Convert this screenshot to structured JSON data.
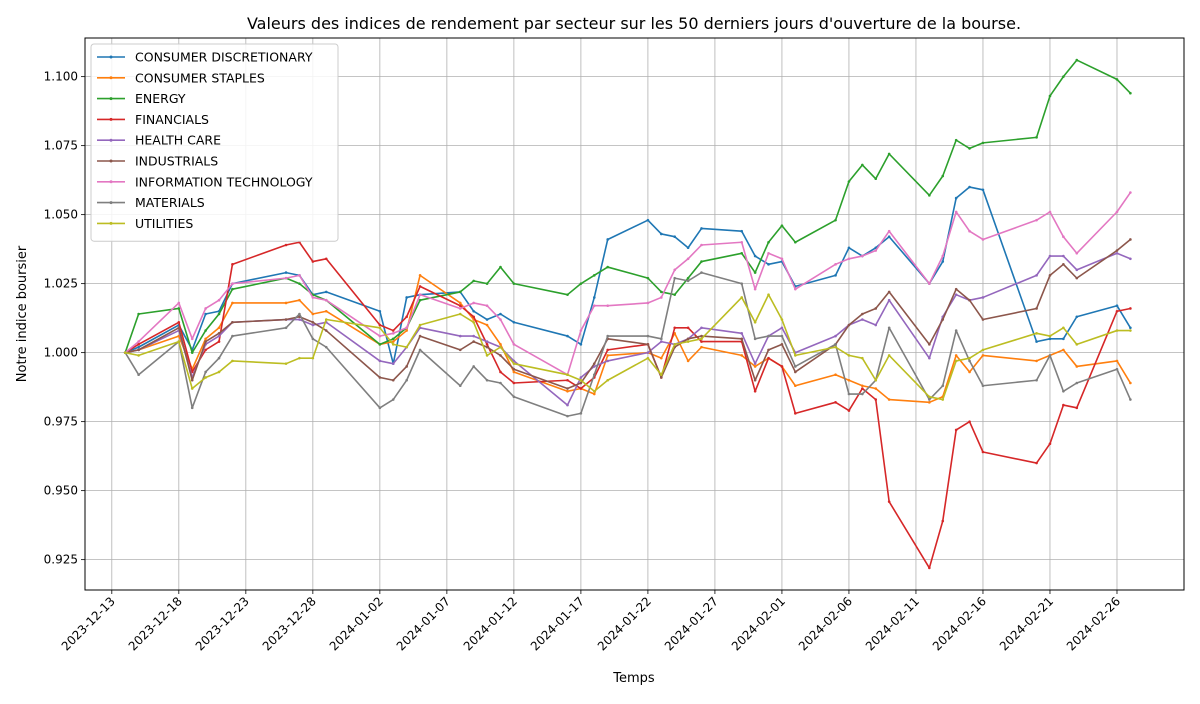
{
  "chart_data": {
    "type": "line",
    "title": "Valeurs des indices de rendement par secteur sur les 50 derniers jours d'ouverture de la bourse.",
    "xlabel": "Temps",
    "ylabel": "Notre indice boursier",
    "xlim": [
      "2023-12-11",
      "2024-03-02"
    ],
    "ylim": [
      0.914,
      1.114
    ],
    "x_ticks": [
      "2023-12-13",
      "2023-12-18",
      "2023-12-23",
      "2023-12-28",
      "2024-01-02",
      "2024-01-07",
      "2024-01-12",
      "2024-01-17",
      "2024-01-22",
      "2024-01-27",
      "2024-02-01",
      "2024-02-06",
      "2024-02-11",
      "2024-02-16",
      "2024-02-21",
      "2024-02-26"
    ],
    "y_ticks": [
      "0.925",
      "0.950",
      "0.975",
      "1.000",
      "1.025",
      "1.050",
      "1.075",
      "1.100"
    ],
    "grid": true,
    "legend_position": "top-left",
    "dates": [
      "2023-12-14",
      "2023-12-15",
      "2023-12-18",
      "2023-12-19",
      "2023-12-20",
      "2023-12-21",
      "2023-12-22",
      "2023-12-26",
      "2023-12-27",
      "2023-12-28",
      "2023-12-29",
      "2024-01-02",
      "2024-01-03",
      "2024-01-04",
      "2024-01-05",
      "2024-01-08",
      "2024-01-09",
      "2024-01-10",
      "2024-01-11",
      "2024-01-12",
      "2024-01-16",
      "2024-01-17",
      "2024-01-18",
      "2024-01-19",
      "2024-01-22",
      "2024-01-23",
      "2024-01-24",
      "2024-01-25",
      "2024-01-26",
      "2024-01-29",
      "2024-01-30",
      "2024-01-31",
      "2024-02-01",
      "2024-02-02",
      "2024-02-05",
      "2024-02-06",
      "2024-02-07",
      "2024-02-08",
      "2024-02-09",
      "2024-02-12",
      "2024-02-13",
      "2024-02-14",
      "2024-02-15",
      "2024-02-16",
      "2024-02-20",
      "2024-02-21",
      "2024-02-22",
      "2024-02-23",
      "2024-02-26",
      "2024-02-27"
    ],
    "series": [
      {
        "name": "CONSUMER DISCRETIONARY",
        "color": "#1f77b4",
        "values": [
          1.0,
          1.002,
          1.01,
          1.001,
          1.014,
          1.015,
          1.025,
          1.029,
          1.028,
          1.021,
          1.022,
          1.015,
          0.996,
          1.02,
          1.021,
          1.022,
          1.015,
          1.012,
          1.014,
          1.011,
          1.006,
          1.003,
          1.02,
          1.041,
          1.048,
          1.043,
          1.042,
          1.038,
          1.045,
          1.044,
          1.035,
          1.032,
          1.033,
          1.024,
          1.028,
          1.038,
          1.035,
          1.038,
          1.042,
          1.025,
          1.033,
          1.056,
          1.06,
          1.059,
          1.004,
          1.005,
          1.005,
          1.013,
          1.017,
          1.009
        ]
      },
      {
        "name": "CONSUMER STAPLES",
        "color": "#ff7f0e",
        "values": [
          1.0,
          1.001,
          1.006,
          0.994,
          1.005,
          1.009,
          1.018,
          1.018,
          1.019,
          1.014,
          1.015,
          1.003,
          1.004,
          1.008,
          1.028,
          1.018,
          1.012,
          1.01,
          1.003,
          0.993,
          0.986,
          0.987,
          0.985,
          0.999,
          1.0,
          0.998,
          1.007,
          0.997,
          1.002,
          0.999,
          0.995,
          0.998,
          0.995,
          0.988,
          0.992,
          0.99,
          0.988,
          0.987,
          0.983,
          0.982,
          0.984,
          0.999,
          0.993,
          0.999,
          0.997,
          0.999,
          1.001,
          0.995,
          0.997,
          0.989
        ]
      },
      {
        "name": "ENERGY",
        "color": "#2ca02c",
        "values": [
          1.0,
          1.014,
          1.016,
          1.0,
          1.008,
          1.014,
          1.023,
          1.027,
          1.025,
          1.021,
          1.019,
          1.003,
          1.005,
          1.009,
          1.019,
          1.022,
          1.026,
          1.025,
          1.031,
          1.025,
          1.021,
          1.025,
          1.028,
          1.031,
          1.027,
          1.022,
          1.021,
          1.027,
          1.033,
          1.036,
          1.029,
          1.04,
          1.046,
          1.04,
          1.048,
          1.062,
          1.068,
          1.063,
          1.072,
          1.057,
          1.064,
          1.077,
          1.074,
          1.076,
          1.078,
          1.093,
          1.1,
          1.106,
          1.099,
          1.094
        ]
      },
      {
        "name": "FINANCIALS",
        "color": "#d62728",
        "values": [
          1.0,
          1.003,
          1.011,
          0.993,
          1.001,
          1.004,
          1.032,
          1.039,
          1.04,
          1.033,
          1.034,
          1.01,
          1.008,
          1.013,
          1.024,
          1.017,
          1.013,
          1.003,
          0.993,
          0.989,
          0.99,
          0.987,
          0.991,
          1.001,
          1.003,
          0.991,
          1.009,
          1.009,
          1.004,
          1.004,
          0.986,
          0.998,
          0.995,
          0.978,
          0.982,
          0.979,
          0.987,
          0.983,
          0.946,
          0.922,
          0.939,
          0.972,
          0.975,
          0.964,
          0.96,
          0.967,
          0.981,
          0.98,
          1.015,
          1.016
        ]
      },
      {
        "name": "HEALTH CARE",
        "color": "#9467bd",
        "values": [
          1.0,
          1.001,
          1.008,
          0.991,
          1.003,
          1.006,
          1.011,
          1.012,
          1.012,
          1.01,
          1.011,
          0.997,
          0.996,
          1.002,
          1.009,
          1.006,
          1.006,
          1.004,
          1.002,
          0.997,
          0.981,
          0.991,
          0.995,
          0.997,
          1.0,
          1.004,
          1.003,
          1.005,
          1.009,
          1.007,
          0.996,
          1.006,
          1.009,
          1.0,
          1.006,
          1.01,
          1.012,
          1.01,
          1.019,
          0.998,
          1.013,
          1.021,
          1.019,
          1.02,
          1.028,
          1.035,
          1.035,
          1.03,
          1.036,
          1.034
        ]
      },
      {
        "name": "INDUSTRIALS",
        "color": "#8c564b",
        "values": [
          1.0,
          1.001,
          1.009,
          0.99,
          1.004,
          1.007,
          1.011,
          1.012,
          1.013,
          1.011,
          1.008,
          0.991,
          0.99,
          0.995,
          1.006,
          1.001,
          1.004,
          1.002,
          0.999,
          0.994,
          0.987,
          0.989,
          0.996,
          1.005,
          1.003,
          0.991,
          1.002,
          1.005,
          1.006,
          1.005,
          0.99,
          1.001,
          1.003,
          0.993,
          1.003,
          1.01,
          1.014,
          1.016,
          1.022,
          1.003,
          1.012,
          1.023,
          1.019,
          1.012,
          1.016,
          1.028,
          1.032,
          1.027,
          1.037,
          1.041
        ]
      },
      {
        "name": "INFORMATION TECHNOLOGY",
        "color": "#e377c2",
        "values": [
          1.0,
          1.004,
          1.018,
          1.005,
          1.016,
          1.019,
          1.025,
          1.027,
          1.028,
          1.02,
          1.019,
          1.006,
          1.007,
          1.009,
          1.021,
          1.016,
          1.018,
          1.017,
          1.012,
          1.003,
          0.992,
          1.008,
          1.017,
          1.017,
          1.018,
          1.02,
          1.03,
          1.034,
          1.039,
          1.04,
          1.023,
          1.036,
          1.034,
          1.023,
          1.032,
          1.034,
          1.035,
          1.037,
          1.044,
          1.025,
          1.035,
          1.051,
          1.044,
          1.041,
          1.048,
          1.051,
          1.042,
          1.036,
          1.051,
          1.058
        ]
      },
      {
        "name": "MATERIALS",
        "color": "#7f7f7f",
        "values": [
          1.0,
          0.992,
          1.004,
          0.98,
          0.993,
          0.998,
          1.006,
          1.009,
          1.014,
          1.005,
          1.002,
          0.98,
          0.983,
          0.99,
          1.001,
          0.988,
          0.995,
          0.99,
          0.989,
          0.984,
          0.977,
          0.978,
          0.992,
          1.006,
          1.006,
          1.005,
          1.027,
          1.026,
          1.029,
          1.025,
          1.005,
          1.006,
          1.006,
          0.995,
          1.003,
          0.985,
          0.985,
          0.99,
          1.009,
          0.983,
          0.988,
          1.008,
          0.997,
          0.988,
          0.99,
          0.999,
          0.986,
          0.989,
          0.994,
          0.983
        ]
      },
      {
        "name": "UTILITIES",
        "color": "#bcbd22",
        "values": [
          1.0,
          0.999,
          1.004,
          0.987,
          0.991,
          0.993,
          0.997,
          0.996,
          0.998,
          0.998,
          1.012,
          1.009,
          1.003,
          1.002,
          1.01,
          1.014,
          1.011,
          0.999,
          1.002,
          0.996,
          0.992,
          0.99,
          0.986,
          0.99,
          0.998,
          0.992,
          1.003,
          1.004,
          1.005,
          1.02,
          1.011,
          1.021,
          1.012,
          0.999,
          1.002,
          0.999,
          0.998,
          0.99,
          0.999,
          0.984,
          0.983,
          0.997,
          0.998,
          1.001,
          1.007,
          1.006,
          1.009,
          1.003,
          1.008,
          1.008
        ]
      }
    ]
  }
}
